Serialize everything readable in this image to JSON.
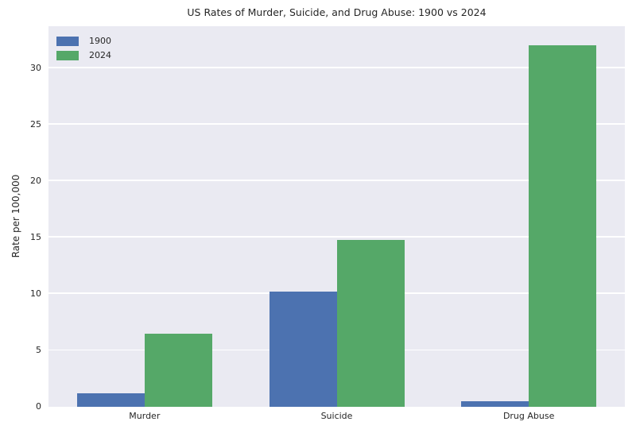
{
  "chart_data": {
    "type": "bar",
    "title": "US Rates of Murder, Suicide, and Drug Abuse: 1900 vs 2024",
    "xlabel": "",
    "ylabel": "Rate per 100,000",
    "categories": [
      "Murder",
      "Suicide",
      "Drug Abuse"
    ],
    "series": [
      {
        "name": "1900",
        "color": "#4c72b0",
        "values": [
          1.2,
          10.2,
          0.5
        ]
      },
      {
        "name": "2024",
        "color": "#55a868",
        "values": [
          6.5,
          14.8,
          32.0
        ]
      }
    ],
    "yticks": [
      0,
      5,
      10,
      15,
      20,
      25,
      30
    ],
    "ylim": [
      0,
      33.7
    ],
    "grid": true,
    "legend_position": "upper left",
    "plot_background": "#eaeaf2",
    "gridline_color": "#ffffff",
    "text_color": "#262626",
    "figure_background": "#ffffff"
  }
}
